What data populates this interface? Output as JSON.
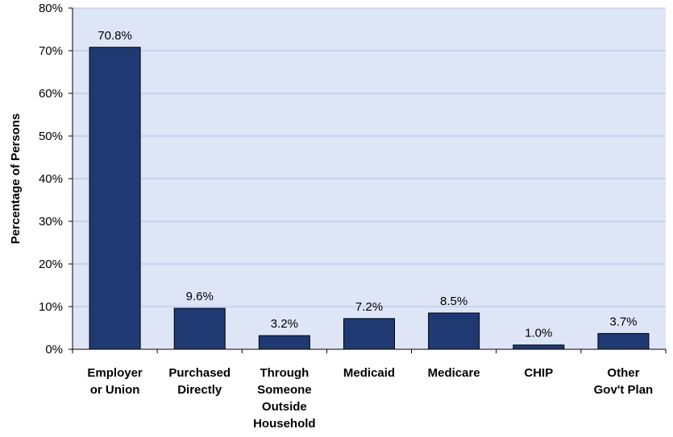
{
  "chart_data": {
    "type": "bar",
    "title": "",
    "xlabel": "",
    "ylabel": "Percentage of Persons",
    "ylim": [
      0,
      80
    ],
    "yticks": [
      0,
      10,
      20,
      30,
      40,
      50,
      60,
      70,
      80
    ],
    "ytick_labels": [
      "0%",
      "10%",
      "20%",
      "30%",
      "40%",
      "50%",
      "60%",
      "70%",
      "80%"
    ],
    "categories": [
      [
        "Employer",
        "or Union"
      ],
      [
        "Purchased",
        "Directly"
      ],
      [
        "Through",
        "Someone",
        "Outside",
        "Household"
      ],
      [
        "Medicaid"
      ],
      [
        "Medicare"
      ],
      [
        "CHIP"
      ],
      [
        "Other",
        "Gov't Plan"
      ]
    ],
    "values": [
      70.8,
      9.6,
      3.2,
      7.2,
      8.5,
      1.0,
      3.7
    ],
    "data_labels": [
      "70.8%",
      "9.6%",
      "3.2%",
      "7.2%",
      "8.5%",
      "1.0%",
      "3.7%"
    ],
    "grid": true,
    "legend": "none",
    "colors": {
      "bar": "#1f3a73",
      "plot_bg": "#dde5f7",
      "grid": "#b7c4e4"
    }
  }
}
